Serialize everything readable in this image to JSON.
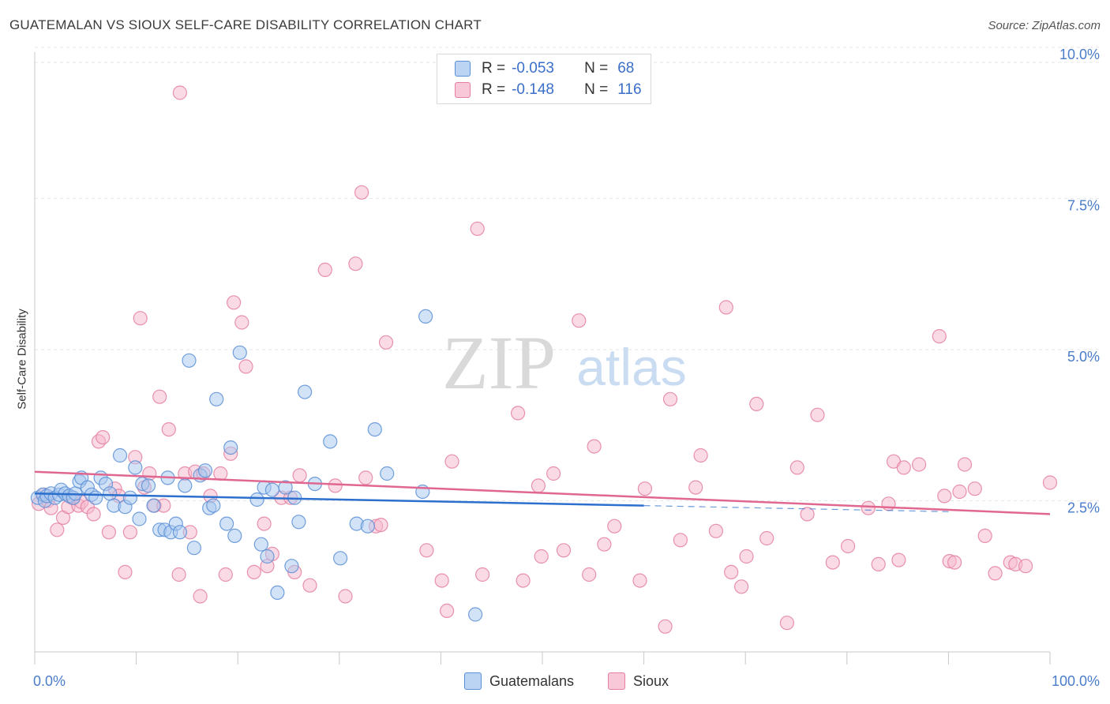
{
  "title": "GUATEMALAN VS SIOUX SELF-CARE DISABILITY CORRELATION CHART",
  "source": "Source: ZipAtlas.com",
  "watermark": {
    "zip": "ZIP",
    "atlas": "atlas"
  },
  "colors": {
    "blue_fill": "#a8c8f0",
    "blue_stroke": "#5b8fd6",
    "blue_line": "#2c6fcd",
    "pink_fill": "#f5b8cc",
    "pink_stroke": "#e47fa0",
    "pink_line": "#e06890",
    "axis_text": "#4a7cc9",
    "grid": "#e6e6e6"
  },
  "legend_top": {
    "rows": [
      {
        "r_label": "R =",
        "r_value": "-0.053",
        "n_label": "N =",
        "n_value": "68"
      },
      {
        "r_label": "R =",
        "r_value": "-0.148",
        "n_label": "N =",
        "n_value": "116"
      }
    ]
  },
  "legend_bottom": {
    "items": [
      "Guatemalans",
      "Sioux"
    ]
  },
  "chart_data": {
    "type": "scatter",
    "title": "GUATEMALAN VS SIOUX SELF-CARE DISABILITY CORRELATION CHART",
    "xlabel": "",
    "ylabel": "Self-Care Disability",
    "xlim": [
      0,
      100
    ],
    "ylim": [
      0,
      10.5
    ],
    "x_tick_labels": [
      "0.0%",
      "100.0%"
    ],
    "y_ticks": [
      2.5,
      5.0,
      7.5,
      10.0
    ],
    "y_tick_labels": [
      "2.5%",
      "5.0%",
      "7.5%",
      "10.0%"
    ],
    "grid": true,
    "legend_position": "top-center",
    "series": [
      {
        "name": "Guatemalans",
        "r": -0.053,
        "n": 68,
        "trend": {
          "x": [
            0,
            60
          ],
          "y": [
            2.62,
            2.42
          ]
        },
        "trend_dashed": {
          "x": [
            60,
            90
          ],
          "y": [
            2.42,
            2.32
          ]
        },
        "points": [
          [
            0.3,
            2.55
          ],
          [
            0.8,
            2.6
          ],
          [
            1.0,
            2.5
          ],
          [
            1.2,
            2.58
          ],
          [
            1.6,
            2.62
          ],
          [
            2.0,
            2.55
          ],
          [
            2.4,
            2.6
          ],
          [
            2.6,
            2.68
          ],
          [
            3.0,
            2.62
          ],
          [
            3.4,
            2.58
          ],
          [
            3.8,
            2.55
          ],
          [
            4.0,
            2.62
          ],
          [
            4.4,
            2.82
          ],
          [
            4.6,
            2.88
          ],
          [
            5.2,
            2.72
          ],
          [
            5.6,
            2.6
          ],
          [
            6.0,
            2.55
          ],
          [
            6.5,
            2.88
          ],
          [
            7.0,
            2.78
          ],
          [
            7.4,
            2.62
          ],
          [
            7.8,
            2.42
          ],
          [
            8.4,
            3.25
          ],
          [
            8.9,
            2.4
          ],
          [
            9.4,
            2.55
          ],
          [
            9.9,
            3.05
          ],
          [
            10.3,
            2.2
          ],
          [
            10.6,
            2.78
          ],
          [
            11.2,
            2.75
          ],
          [
            11.7,
            2.42
          ],
          [
            12.3,
            2.02
          ],
          [
            12.8,
            2.02
          ],
          [
            13.1,
            2.88
          ],
          [
            13.4,
            1.98
          ],
          [
            13.9,
            2.12
          ],
          [
            14.3,
            1.98
          ],
          [
            14.8,
            2.75
          ],
          [
            15.2,
            4.82
          ],
          [
            15.7,
            1.72
          ],
          [
            16.3,
            2.92
          ],
          [
            16.8,
            3.0
          ],
          [
            17.2,
            2.38
          ],
          [
            17.6,
            2.42
          ],
          [
            17.9,
            4.18
          ],
          [
            18.9,
            2.12
          ],
          [
            19.3,
            3.38
          ],
          [
            19.7,
            1.92
          ],
          [
            20.2,
            4.95
          ],
          [
            21.9,
            2.52
          ],
          [
            22.3,
            1.78
          ],
          [
            22.6,
            2.72
          ],
          [
            22.9,
            1.58
          ],
          [
            23.4,
            2.68
          ],
          [
            23.9,
            0.98
          ],
          [
            24.7,
            2.72
          ],
          [
            25.3,
            1.42
          ],
          [
            25.6,
            2.55
          ],
          [
            26.0,
            2.15
          ],
          [
            26.6,
            4.3
          ],
          [
            27.6,
            2.78
          ],
          [
            29.1,
            3.48
          ],
          [
            30.1,
            1.55
          ],
          [
            31.7,
            2.12
          ],
          [
            32.8,
            2.08
          ],
          [
            33.5,
            3.68
          ],
          [
            34.7,
            2.95
          ],
          [
            38.2,
            2.65
          ],
          [
            38.5,
            5.55
          ],
          [
            43.4,
            0.62
          ]
        ]
      },
      {
        "name": "Sioux",
        "r": -0.148,
        "n": 116,
        "trend": {
          "x": [
            0,
            100
          ],
          "y": [
            2.98,
            2.28
          ]
        },
        "points": [
          [
            0.4,
            2.45
          ],
          [
            0.9,
            2.6
          ],
          [
            1.3,
            2.5
          ],
          [
            1.6,
            2.38
          ],
          [
            2.2,
            2.02
          ],
          [
            2.8,
            2.22
          ],
          [
            3.3,
            2.4
          ],
          [
            3.7,
            2.55
          ],
          [
            4.3,
            2.42
          ],
          [
            4.6,
            2.48
          ],
          [
            5.2,
            2.4
          ],
          [
            5.8,
            2.28
          ],
          [
            6.3,
            3.48
          ],
          [
            6.7,
            3.55
          ],
          [
            7.3,
            1.98
          ],
          [
            7.9,
            2.7
          ],
          [
            8.3,
            2.58
          ],
          [
            8.9,
            1.32
          ],
          [
            9.4,
            1.98
          ],
          [
            9.9,
            3.22
          ],
          [
            10.4,
            5.52
          ],
          [
            10.8,
            2.72
          ],
          [
            11.3,
            2.95
          ],
          [
            11.8,
            2.42
          ],
          [
            12.3,
            4.22
          ],
          [
            12.7,
            2.42
          ],
          [
            13.2,
            3.68
          ],
          [
            14.2,
            1.28
          ],
          [
            14.3,
            9.25
          ],
          [
            14.8,
            2.95
          ],
          [
            15.3,
            1.98
          ],
          [
            15.8,
            2.98
          ],
          [
            16.3,
            0.92
          ],
          [
            16.6,
            2.95
          ],
          [
            17.3,
            2.58
          ],
          [
            18.3,
            2.95
          ],
          [
            18.8,
            1.28
          ],
          [
            19.3,
            3.28
          ],
          [
            19.6,
            5.78
          ],
          [
            20.4,
            5.45
          ],
          [
            20.8,
            4.72
          ],
          [
            21.6,
            1.32
          ],
          [
            22.6,
            2.12
          ],
          [
            22.9,
            1.42
          ],
          [
            23.4,
            1.62
          ],
          [
            24.3,
            2.55
          ],
          [
            25.2,
            2.55
          ],
          [
            25.6,
            1.32
          ],
          [
            26.1,
            2.92
          ],
          [
            27.1,
            1.1
          ],
          [
            28.6,
            6.32
          ],
          [
            29.6,
            2.75
          ],
          [
            30.6,
            0.92
          ],
          [
            31.6,
            6.42
          ],
          [
            32.2,
            7.6
          ],
          [
            32.6,
            2.88
          ],
          [
            33.6,
            2.08
          ],
          [
            34.1,
            2.1
          ],
          [
            34.6,
            5.12
          ],
          [
            38.6,
            1.68
          ],
          [
            40.1,
            1.18
          ],
          [
            40.6,
            0.68
          ],
          [
            41.1,
            3.15
          ],
          [
            43.6,
            7.0
          ],
          [
            44.1,
            1.28
          ],
          [
            47.6,
            3.95
          ],
          [
            48.1,
            1.18
          ],
          [
            49.6,
            2.75
          ],
          [
            49.9,
            1.58
          ],
          [
            51.1,
            2.95
          ],
          [
            52.1,
            1.68
          ],
          [
            53.6,
            5.48
          ],
          [
            54.6,
            1.28
          ],
          [
            55.1,
            3.4
          ],
          [
            56.1,
            1.78
          ],
          [
            57.1,
            2.08
          ],
          [
            59.6,
            1.18
          ],
          [
            60.1,
            2.7
          ],
          [
            62.1,
            0.42
          ],
          [
            62.6,
            4.18
          ],
          [
            63.6,
            1.85
          ],
          [
            65.1,
            2.72
          ],
          [
            65.6,
            3.25
          ],
          [
            67.1,
            2.0
          ],
          [
            68.1,
            5.7
          ],
          [
            68.6,
            1.32
          ],
          [
            69.6,
            1.08
          ],
          [
            70.1,
            1.58
          ],
          [
            71.1,
            4.1
          ],
          [
            72.1,
            1.88
          ],
          [
            74.1,
            0.48
          ],
          [
            75.1,
            3.05
          ],
          [
            76.1,
            2.28
          ],
          [
            77.1,
            3.92
          ],
          [
            78.6,
            1.48
          ],
          [
            80.1,
            1.75
          ],
          [
            82.1,
            2.38
          ],
          [
            83.1,
            1.45
          ],
          [
            84.1,
            2.45
          ],
          [
            84.6,
            3.15
          ],
          [
            85.1,
            1.52
          ],
          [
            85.6,
            3.05
          ],
          [
            87.1,
            3.1
          ],
          [
            89.1,
            5.22
          ],
          [
            89.6,
            2.58
          ],
          [
            90.1,
            1.5
          ],
          [
            90.6,
            1.48
          ],
          [
            91.1,
            2.65
          ],
          [
            91.6,
            3.1
          ],
          [
            92.6,
            2.7
          ],
          [
            93.6,
            1.92
          ],
          [
            94.6,
            1.3
          ],
          [
            96.1,
            1.48
          ],
          [
            96.6,
            1.45
          ],
          [
            97.6,
            1.42
          ],
          [
            100.0,
            2.8
          ]
        ]
      }
    ]
  }
}
